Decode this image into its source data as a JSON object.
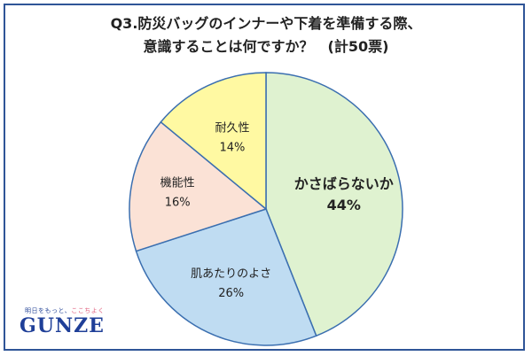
{
  "title": {
    "line1": "Q3.防災バッグのインナーや下着を準備する際、",
    "line2": "意識することは何ですか？　(計50票)"
  },
  "logo": {
    "tagline_pre": "明日をもっと、",
    "tagline_accent": "ここちよく",
    "word": "GUNZE"
  },
  "colors": {
    "border": "#2f5597",
    "slice_stroke": "#3b6fb0"
  },
  "chart_data": {
    "type": "pie",
    "title": "Q3.防災バッグのインナーや下着を準備する際、意識することは何ですか？　(計50票)",
    "start_angle": "12 o'clock",
    "direction": "clockwise",
    "slices": [
      {
        "label": "かさばらないか",
        "value": 44,
        "value_label": "44%",
        "color": "#dff2d0",
        "emphasis": true
      },
      {
        "label": "肌あたりのよさ",
        "value": 26,
        "value_label": "26%",
        "color": "#bfdcf2",
        "emphasis": false
      },
      {
        "label": "機能性",
        "value": 16,
        "value_label": "16%",
        "color": "#fbe2d6",
        "emphasis": false
      },
      {
        "label": "耐久性",
        "value": 14,
        "value_label": "14%",
        "color": "#fff9a2",
        "emphasis": false
      }
    ]
  }
}
